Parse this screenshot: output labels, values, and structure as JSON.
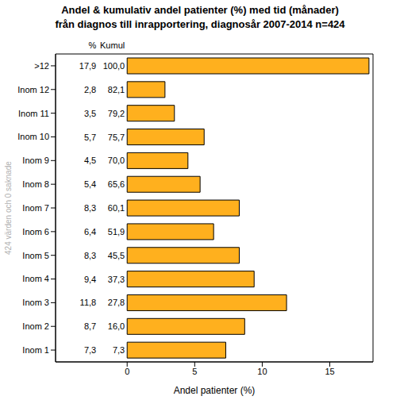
{
  "chart_data": {
    "type": "bar",
    "orientation": "horizontal",
    "title": "Andel & kumulativ andel patienter (%) med tid (månader)\nfrån diagnos till inrapportering, diagnosår 2007-2014  n=424",
    "x_label": "Andel patienter (%)",
    "note": "424 värden och 0 saknade",
    "columns": [
      "%",
      "Kumul"
    ],
    "categories": [
      "Inom 1",
      "Inom 2",
      "Inom 3",
      "Inom 4",
      "Inom 5",
      "Inom 6",
      "Inom 7",
      "Inom 8",
      "Inom 9",
      "Inom 10",
      "Inom 11",
      "Inom 12",
      ">12"
    ],
    "values": [
      7.3,
      8.7,
      11.8,
      9.4,
      8.3,
      6.4,
      8.3,
      5.4,
      4.5,
      5.7,
      3.5,
      2.8,
      17.9
    ],
    "value_labels": [
      "7,3",
      "8,7",
      "11,8",
      "9,4",
      "8,3",
      "6,4",
      "8,3",
      "5,4",
      "4,5",
      "5,7",
      "3,5",
      "2,8",
      "17,9"
    ],
    "cumulative": [
      7.3,
      16.0,
      27.8,
      37.3,
      45.5,
      51.9,
      60.1,
      65.6,
      70.0,
      75.7,
      79.2,
      82.1,
      100.0
    ],
    "cumulative_labels": [
      "7,3",
      "16,0",
      "27,8",
      "37,3",
      "45,5",
      "51,9",
      "60,1",
      "65,6",
      "70,0",
      "75,7",
      "79,2",
      "82,1",
      "100,0"
    ],
    "color": "#FFB01E",
    "xlim": [
      -5.3,
      18.2
    ],
    "xticks": [
      0,
      5,
      10,
      15
    ],
    "grid": false
  }
}
